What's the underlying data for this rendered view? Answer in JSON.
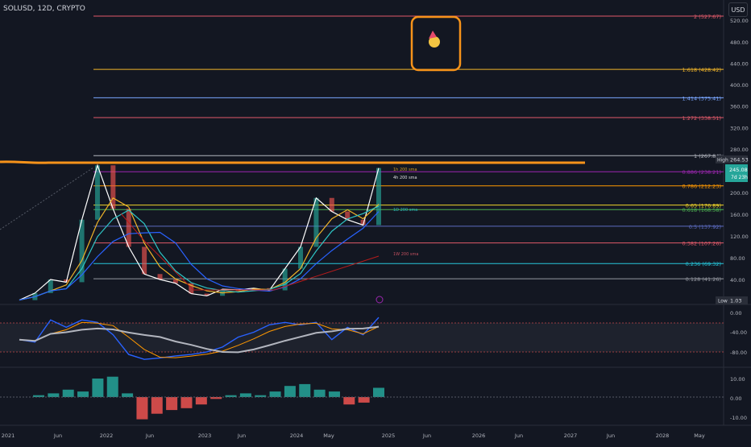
{
  "header": {
    "symbol_line": "SOLUSD, 12D, CRYPTO",
    "currency_button": "USD"
  },
  "colors": {
    "background": "#131722",
    "axis_text": "#b2b5be",
    "orange_highlight": "#f7931a",
    "up": "#26a69a",
    "down": "#ef5350",
    "price_line": "#ffffff",
    "sma_cyan": "#2ec4c4",
    "sma_blue": "#2962ff",
    "sma_red": "#b71c1c"
  },
  "price_axis": {
    "ticks": [
      "520.00",
      "480.00",
      "440.00",
      "400.00",
      "360.00",
      "320.00",
      "280.00",
      "200.00",
      "160.00",
      "120.00",
      "80.00",
      "40.00"
    ],
    "high_label": "High",
    "high_value": "264.53",
    "current_value": "245.08",
    "current_countdown": "7d 23h",
    "low_label": "Low",
    "low_value": "1.03"
  },
  "fib_levels": [
    {
      "label": "2 (527.67)",
      "value": 527.67,
      "color": "#e05a6a"
    },
    {
      "label": "1.618 (428.42)",
      "value": 428.42,
      "color": "#f0b429"
    },
    {
      "label": "1.414 (375.41)",
      "value": 375.41,
      "color": "#7aa6ff"
    },
    {
      "label": "1.272 (338.51)",
      "value": 338.51,
      "color": "#e05a6a"
    },
    {
      "label": "1 (267.84)",
      "value": 267.84,
      "color": "#b2b5be"
    },
    {
      "label": "0.886 (238.21)",
      "value": 238.21,
      "color": "#9c27b0"
    },
    {
      "label": "0.786 (212.23)",
      "value": 212.23,
      "color": "#ff9800"
    },
    {
      "label": "0.65 (176.89)",
      "value": 176.89,
      "color": "#f0d429"
    },
    {
      "label": "0.618 (168.58)",
      "value": 168.58,
      "color": "#4caf50"
    },
    {
      "label": "0.5 (137.92)",
      "value": 137.92,
      "color": "#5c6bc0"
    },
    {
      "label": "0.382 (107.26)",
      "value": 107.26,
      "color": "#e05a6a"
    },
    {
      "label": "0.236 (69.32)",
      "value": 69.32,
      "color": "#26c6da"
    },
    {
      "label": "0.128 (41.26)",
      "value": 41.26,
      "color": "#9598a1"
    }
  ],
  "sma_labels": [
    {
      "text": "1h 200 sma",
      "color": "#f0b429"
    },
    {
      "text": "4h 200 sma",
      "color": "#ffffff"
    },
    {
      "text": "1D 200 sma",
      "color": "#26c6da"
    },
    {
      "text": "1W 200 sma",
      "color": "#e05a6a"
    }
  ],
  "osc_axis": {
    "ticks": [
      "0.00",
      "-40.00",
      "-80.00"
    ]
  },
  "hist_axis": {
    "ticks": [
      "10.00",
      "0.00",
      "-10.00"
    ]
  },
  "time_axis": {
    "ticks": [
      "2021",
      "Jun",
      "2022",
      "Jun",
      "2023",
      "Jun",
      "2024",
      "May",
      "2025",
      "Jun",
      "2026",
      "Jun",
      "2027",
      "Jun",
      "2028",
      "May"
    ]
  },
  "chart_data": {
    "type": "line",
    "title": "SOLUSD, 12D, CRYPTO",
    "xlabel": "",
    "ylabel": "",
    "ylim": [
      0,
      540
    ],
    "x": [
      "2021-01",
      "2021-03",
      "2021-05",
      "2021-07",
      "2021-09",
      "2021-11",
      "2022-01",
      "2022-03",
      "2022-05",
      "2022-07",
      "2022-09",
      "2022-11",
      "2023-01",
      "2023-03",
      "2023-05",
      "2023-07",
      "2023-09",
      "2023-11",
      "2024-01",
      "2024-03",
      "2024-05",
      "2024-07",
      "2024-09",
      "2024-11"
    ],
    "series": [
      {
        "values": [
          2,
          15,
          40,
          35,
          150,
          250,
          170,
          100,
          50,
          40,
          33,
          14,
          10,
          22,
          21,
          24,
          20,
          60,
          100,
          190,
          165,
          150,
          140,
          245
        ]
      }
    ],
    "fib_levels": [
      527.67,
      428.42,
      375.41,
      338.51,
      267.84,
      238.21,
      212.23,
      176.89,
      168.58,
      137.92,
      107.26,
      69.32,
      41.26
    ],
    "oscillator": {
      "ylim": [
        -100,
        10
      ],
      "values": [
        -55,
        -60,
        -15,
        -30,
        -15,
        -20,
        -45,
        -85,
        -95,
        -92,
        -88,
        -85,
        -80,
        -70,
        -50,
        -40,
        -25,
        -20,
        -25,
        -20,
        -55,
        -30,
        -45,
        -10
      ]
    },
    "histogram": {
      "ylim": [
        -15,
        15
      ],
      "values": [
        1,
        2,
        4,
        3,
        10,
        11,
        2,
        -12,
        -9,
        -7,
        -6,
        -4,
        -1,
        1,
        2,
        1,
        3,
        6,
        7,
        4,
        3,
        -4,
        -3,
        5
      ]
    },
    "grid": false
  }
}
